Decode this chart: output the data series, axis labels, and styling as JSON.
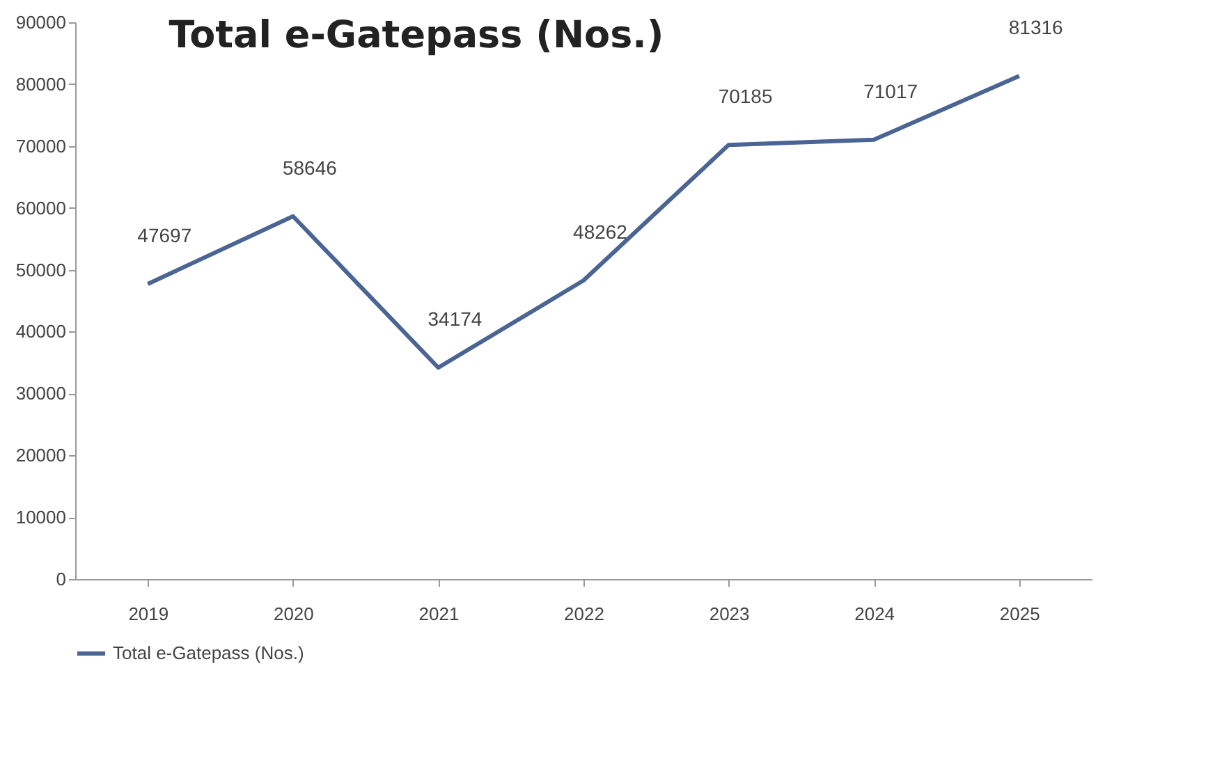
{
  "chart_data": {
    "type": "line",
    "title": "Total  e-Gatepass (Nos.)",
    "categories": [
      "2019",
      "2020",
      "2021",
      "2022",
      "2023",
      "2024",
      "2025"
    ],
    "series": [
      {
        "name": "Total  e-Gatepass (Nos.)",
        "color": "#4a6494",
        "values": [
          47697,
          58646,
          34174,
          48262,
          70185,
          71017,
          81316
        ]
      }
    ],
    "ylim": [
      0,
      90000
    ],
    "yticks": [
      0,
      10000,
      20000,
      30000,
      40000,
      50000,
      60000,
      70000,
      80000,
      90000
    ],
    "grid": false,
    "legend": "bottom",
    "data_labels": true,
    "marker": "none",
    "line_style": "solid"
  }
}
